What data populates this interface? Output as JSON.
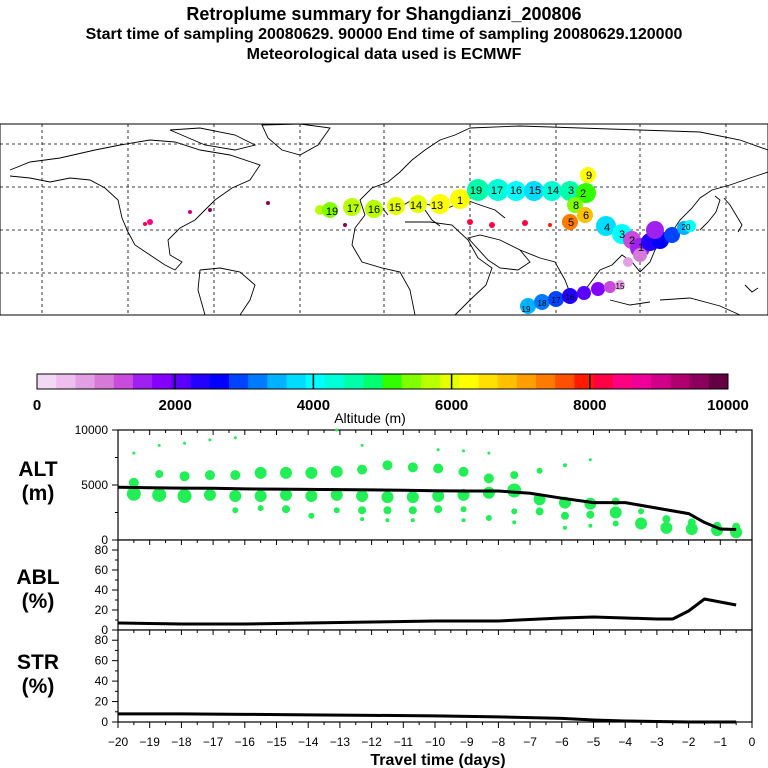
{
  "header": {
    "title": "Retroplume summary for Shangdianzi_200806",
    "sampling_line": "Start time of sampling 20080629. 90000     End time of sampling 20080629.120000",
    "met_line": "Meteorological data used is ECMWF"
  },
  "colorbar": {
    "tick_labels": [
      "0",
      "2000",
      "4000",
      "6000",
      "8000",
      "10000"
    ],
    "label": "Altitude (m)",
    "colors": [
      "#f2d8f2",
      "#eebfee",
      "#e39fe3",
      "#d77ad7",
      "#c94bdb",
      "#a020f0",
      "#8400ff",
      "#5a00ff",
      "#2400ff",
      "#0000ff",
      "#0044ff",
      "#007bff",
      "#00b2ff",
      "#00ddff",
      "#00ffff",
      "#00ffd8",
      "#00ffaa",
      "#00ff70",
      "#30ff00",
      "#80ff00",
      "#b8ff00",
      "#e6ff00",
      "#ffff00",
      "#ffe000",
      "#ffc000",
      "#ff9e00",
      "#ff7a00",
      "#ff4f00",
      "#ff1a00",
      "#ff0044",
      "#ff0080",
      "#ee0099",
      "#d00088",
      "#b00070",
      "#8a005a",
      "#660044"
    ]
  },
  "map_labels": [
    "19",
    "17",
    "16",
    "15",
    "14",
    "13",
    "1",
    "19",
    "17",
    "16",
    "15",
    "14",
    "3",
    "2",
    "9",
    "8",
    "6",
    "5",
    "4",
    "3",
    "2",
    "1",
    "20",
    "19",
    "18",
    "17",
    "16",
    "15"
  ],
  "panels": {
    "alt": {
      "label_top": "ALT",
      "label_bottom": "(m)"
    },
    "abl": {
      "label_top": "ABL",
      "label_bottom": "(%)"
    },
    "str": {
      "label_top": "STR",
      "label_bottom": "(%)"
    }
  },
  "chart_data": [
    {
      "type": "line",
      "name": "ALT",
      "ylabel": "ALT (m)",
      "x": [
        -20,
        -19,
        -18,
        -17,
        -16,
        -15,
        -14,
        -13,
        -12,
        -11,
        -10,
        -9,
        -8,
        -7,
        -6,
        -5,
        -4,
        -3,
        -2,
        -1.5,
        -1,
        -0.5
      ],
      "y": [
        4800,
        4750,
        4720,
        4700,
        4650,
        4620,
        4600,
        4580,
        4560,
        4520,
        4480,
        4450,
        4450,
        4250,
        3800,
        3400,
        3400,
        2900,
        2400,
        1600,
        1000,
        950
      ],
      "xlim": [
        -20,
        0
      ],
      "ylim": [
        0,
        10000
      ],
      "yticks": [
        0,
        5000,
        10000
      ],
      "ytick_labels": [
        "0",
        "5000",
        "10000"
      ],
      "scatter": [
        {
          "x": -19.5,
          "y": 4200,
          "s": 7
        },
        {
          "x": -19.5,
          "y": 5200,
          "s": 5
        },
        {
          "x": -19.5,
          "y": 7900,
          "s": 1.5
        },
        {
          "x": -18.7,
          "y": 4100,
          "s": 7
        },
        {
          "x": -18.7,
          "y": 6000,
          "s": 4
        },
        {
          "x": -18.7,
          "y": 8600,
          "s": 1.5
        },
        {
          "x": -17.9,
          "y": 4000,
          "s": 7
        },
        {
          "x": -17.9,
          "y": 5800,
          "s": 5
        },
        {
          "x": -17.9,
          "y": 8800,
          "s": 1.5
        },
        {
          "x": -17.1,
          "y": 4100,
          "s": 6
        },
        {
          "x": -17.1,
          "y": 5900,
          "s": 5
        },
        {
          "x": -17.1,
          "y": 9100,
          "s": 1.5
        },
        {
          "x": -16.3,
          "y": 4000,
          "s": 6
        },
        {
          "x": -16.3,
          "y": 5900,
          "s": 5
        },
        {
          "x": -16.3,
          "y": 2700,
          "s": 3
        },
        {
          "x": -16.3,
          "y": 9300,
          "s": 1.5
        },
        {
          "x": -15.5,
          "y": 4000,
          "s": 6
        },
        {
          "x": -15.5,
          "y": 6100,
          "s": 6
        },
        {
          "x": -15.5,
          "y": 2900,
          "s": 3
        },
        {
          "x": -14.7,
          "y": 4100,
          "s": 6
        },
        {
          "x": -14.7,
          "y": 6100,
          "s": 6
        },
        {
          "x": -14.7,
          "y": 2800,
          "s": 4
        },
        {
          "x": -13.9,
          "y": 4000,
          "s": 6
        },
        {
          "x": -13.9,
          "y": 6100,
          "s": 6
        },
        {
          "x": -13.9,
          "y": 2200,
          "s": 3
        },
        {
          "x": -13.1,
          "y": 4100,
          "s": 6
        },
        {
          "x": -13.1,
          "y": 6200,
          "s": 6
        },
        {
          "x": -13.1,
          "y": 2700,
          "s": 3
        },
        {
          "x": -13.1,
          "y": 10000,
          "s": 1.5
        },
        {
          "x": -12.3,
          "y": 4000,
          "s": 6
        },
        {
          "x": -12.3,
          "y": 6400,
          "s": 5
        },
        {
          "x": -12.3,
          "y": 2700,
          "s": 4
        },
        {
          "x": -12.3,
          "y": 1900,
          "s": 2
        },
        {
          "x": -12.3,
          "y": 8600,
          "s": 1.5
        },
        {
          "x": -11.5,
          "y": 3900,
          "s": 6
        },
        {
          "x": -11.5,
          "y": 6800,
          "s": 5
        },
        {
          "x": -11.5,
          "y": 2700,
          "s": 4
        },
        {
          "x": -11.5,
          "y": 1800,
          "s": 2
        },
        {
          "x": -10.7,
          "y": 3900,
          "s": 6
        },
        {
          "x": -10.7,
          "y": 6600,
          "s": 5
        },
        {
          "x": -10.7,
          "y": 2700,
          "s": 4
        },
        {
          "x": -10.7,
          "y": 1800,
          "s": 2
        },
        {
          "x": -9.9,
          "y": 4000,
          "s": 6
        },
        {
          "x": -9.9,
          "y": 6500,
          "s": 5
        },
        {
          "x": -9.9,
          "y": 2800,
          "s": 4
        },
        {
          "x": -9.9,
          "y": 8200,
          "s": 1.5
        },
        {
          "x": -9.1,
          "y": 4100,
          "s": 6
        },
        {
          "x": -9.1,
          "y": 6200,
          "s": 5
        },
        {
          "x": -9.1,
          "y": 2800,
          "s": 3
        },
        {
          "x": -9.1,
          "y": 1800,
          "s": 2
        },
        {
          "x": -9.1,
          "y": 8100,
          "s": 1.5
        },
        {
          "x": -8.3,
          "y": 4300,
          "s": 6
        },
        {
          "x": -8.3,
          "y": 5600,
          "s": 5
        },
        {
          "x": -8.3,
          "y": 2000,
          "s": 3
        },
        {
          "x": -8.3,
          "y": 7900,
          "s": 1.5
        },
        {
          "x": -7.5,
          "y": 4500,
          "s": 7
        },
        {
          "x": -7.5,
          "y": 5900,
          "s": 4
        },
        {
          "x": -7.5,
          "y": 2600,
          "s": 3
        },
        {
          "x": -7.5,
          "y": 1600,
          "s": 2
        },
        {
          "x": -6.7,
          "y": 3700,
          "s": 6
        },
        {
          "x": -6.7,
          "y": 2600,
          "s": 4
        },
        {
          "x": -6.7,
          "y": 6300,
          "s": 3
        },
        {
          "x": -5.9,
          "y": 3400,
          "s": 6
        },
        {
          "x": -5.9,
          "y": 2200,
          "s": 4
        },
        {
          "x": -5.9,
          "y": 6800,
          "s": 2
        },
        {
          "x": -5.9,
          "y": 1100,
          "s": 2
        },
        {
          "x": -5.1,
          "y": 3300,
          "s": 6
        },
        {
          "x": -5.1,
          "y": 2300,
          "s": 4
        },
        {
          "x": -5.1,
          "y": 7300,
          "s": 1.5
        },
        {
          "x": -5.1,
          "y": 1300,
          "s": 2
        },
        {
          "x": -4.3,
          "y": 2500,
          "s": 6
        },
        {
          "x": -4.3,
          "y": 3500,
          "s": 4
        },
        {
          "x": -4.3,
          "y": 1500,
          "s": 3
        },
        {
          "x": -3.5,
          "y": 1500,
          "s": 6
        },
        {
          "x": -3.5,
          "y": 2600,
          "s": 3
        },
        {
          "x": -2.7,
          "y": 1100,
          "s": 6
        },
        {
          "x": -2.7,
          "y": 1900,
          "s": 4
        },
        {
          "x": -1.9,
          "y": 1000,
          "s": 6
        },
        {
          "x": -1.9,
          "y": 1600,
          "s": 4
        },
        {
          "x": -1.1,
          "y": 900,
          "s": 6
        },
        {
          "x": -1.1,
          "y": 1300,
          "s": 4
        },
        {
          "x": -0.5,
          "y": 700,
          "s": 6
        },
        {
          "x": -0.5,
          "y": 1200,
          "s": 4
        }
      ]
    },
    {
      "type": "line",
      "name": "ABL",
      "ylabel": "ABL (%)",
      "x": [
        -20,
        -18,
        -16,
        -14,
        -12,
        -10,
        -8,
        -6,
        -5,
        -4,
        -3,
        -2.5,
        -2,
        -1.5,
        -1,
        -0.5
      ],
      "y": [
        7,
        6,
        6,
        7,
        8,
        9,
        9,
        12,
        13,
        12,
        11,
        11,
        19,
        31,
        28,
        25
      ],
      "xlim": [
        -20,
        0
      ],
      "ylim": [
        0,
        90
      ],
      "yticks": [
        0,
        20,
        40,
        60,
        80
      ],
      "ytick_labels": [
        "0",
        "20",
        "40",
        "60",
        "80"
      ]
    },
    {
      "type": "line",
      "name": "STR",
      "ylabel": "STR (%)",
      "x": [
        -20,
        -18,
        -16,
        -14,
        -12,
        -10,
        -8,
        -6,
        -5,
        -4,
        -3,
        -2,
        -1,
        -0.5
      ],
      "y": [
        8,
        8,
        7.5,
        7,
        6.5,
        6,
        5,
        3.5,
        2,
        1,
        0.5,
        0,
        0,
        0
      ],
      "xlim": [
        -20,
        0
      ],
      "ylim": [
        0,
        90
      ],
      "yticks": [
        0,
        20,
        40,
        60,
        80
      ],
      "ytick_labels": [
        "0",
        "20",
        "40",
        "60",
        "80"
      ]
    }
  ],
  "xaxis": {
    "tick_labels": [
      "−20",
      "−19",
      "−18",
      "−17",
      "−16",
      "−15",
      "−14",
      "−13",
      "−12",
      "−11",
      "−10",
      "−9",
      "−8",
      "−7",
      "−6",
      "−5",
      "−4",
      "−3",
      "−2",
      "−1",
      "0"
    ],
    "label": "Travel time (days)"
  }
}
